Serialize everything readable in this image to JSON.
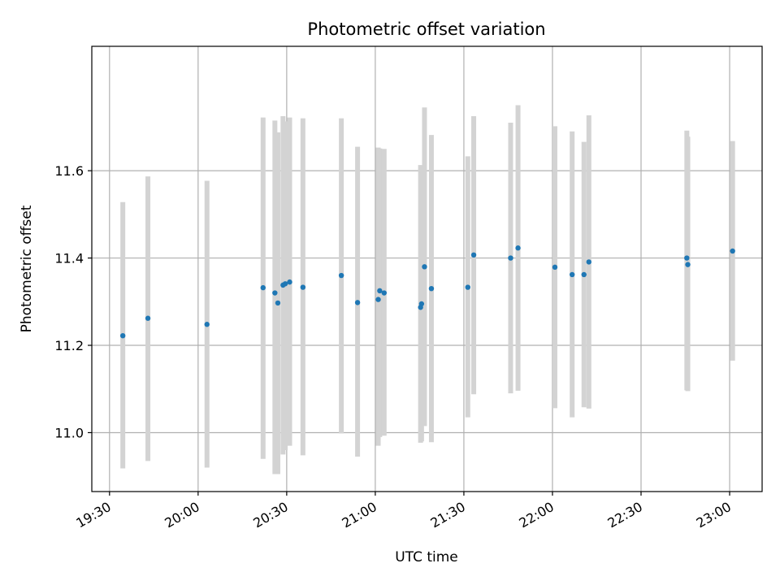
{
  "chart_data": {
    "type": "scatter",
    "title": "Photometric offset variation",
    "xlabel": "UTC time",
    "ylabel": "Photometric offset",
    "x_ticks": [
      "19:30",
      "20:00",
      "20:30",
      "21:00",
      "21:30",
      "22:00",
      "22:30",
      "23:00"
    ],
    "y_ticks": [
      "11.0",
      "11.2",
      "11.4",
      "11.6"
    ],
    "xlim": [
      "19:24",
      "23:11"
    ],
    "ylim": [
      10.865,
      11.885
    ],
    "grid": true,
    "colors": {
      "point": "#1f77b4",
      "errorbar": "#d3d3d3",
      "grid": "#b0b0b0"
    },
    "points": [
      {
        "x": "19:34:30",
        "y": 11.222,
        "lo": 10.918,
        "hi": 11.528
      },
      {
        "x": "19:43:00",
        "y": 11.262,
        "lo": 10.935,
        "hi": 11.587
      },
      {
        "x": "20:03:00",
        "y": 11.248,
        "lo": 10.92,
        "hi": 11.577
      },
      {
        "x": "20:22:00",
        "y": 11.332,
        "lo": 10.94,
        "hi": 11.722
      },
      {
        "x": "20:26:00",
        "y": 11.32,
        "lo": 10.905,
        "hi": 11.715
      },
      {
        "x": "20:27:00",
        "y": 11.297,
        "lo": 10.905,
        "hi": 11.688
      },
      {
        "x": "20:28:45",
        "y": 11.338,
        "lo": 10.95,
        "hi": 11.725
      },
      {
        "x": "20:29:30",
        "y": 11.341,
        "lo": 10.96,
        "hi": 11.713
      },
      {
        "x": "20:31:00",
        "y": 11.345,
        "lo": 10.97,
        "hi": 11.722
      },
      {
        "x": "20:35:30",
        "y": 11.333,
        "lo": 10.948,
        "hi": 11.72
      },
      {
        "x": "20:48:30",
        "y": 11.36,
        "lo": 10.998,
        "hi": 11.72
      },
      {
        "x": "20:54:00",
        "y": 11.298,
        "lo": 10.945,
        "hi": 11.655
      },
      {
        "x": "21:01:00",
        "y": 11.305,
        "lo": 10.97,
        "hi": 11.653
      },
      {
        "x": "21:01:30",
        "y": 11.325,
        "lo": 10.99,
        "hi": 11.651
      },
      {
        "x": "21:03:00",
        "y": 11.32,
        "lo": 10.993,
        "hi": 11.65
      },
      {
        "x": "21:15:20",
        "y": 11.287,
        "lo": 10.977,
        "hi": 11.613
      },
      {
        "x": "21:15:40",
        "y": 11.295,
        "lo": 10.98,
        "hi": 11.61
      },
      {
        "x": "21:16:40",
        "y": 11.38,
        "lo": 11.015,
        "hi": 11.745
      },
      {
        "x": "21:19:00",
        "y": 11.33,
        "lo": 10.978,
        "hi": 11.682
      },
      {
        "x": "21:31:20",
        "y": 11.333,
        "lo": 11.035,
        "hi": 11.633
      },
      {
        "x": "21:33:20",
        "y": 11.407,
        "lo": 11.088,
        "hi": 11.725
      },
      {
        "x": "21:45:50",
        "y": 11.4,
        "lo": 11.09,
        "hi": 11.71
      },
      {
        "x": "21:48:20",
        "y": 11.423,
        "lo": 11.096,
        "hi": 11.75
      },
      {
        "x": "22:00:50",
        "y": 11.379,
        "lo": 11.056,
        "hi": 11.702
      },
      {
        "x": "22:06:40",
        "y": 11.362,
        "lo": 11.035,
        "hi": 11.69
      },
      {
        "x": "22:10:40",
        "y": 11.362,
        "lo": 11.058,
        "hi": 11.666
      },
      {
        "x": "22:12:20",
        "y": 11.391,
        "lo": 11.055,
        "hi": 11.727
      },
      {
        "x": "22:45:30",
        "y": 11.4,
        "lo": 11.097,
        "hi": 11.692
      },
      {
        "x": "22:45:50",
        "y": 11.385,
        "lo": 11.095,
        "hi": 11.678
      },
      {
        "x": "23:01:00",
        "y": 11.416,
        "lo": 11.165,
        "hi": 11.668
      }
    ]
  }
}
